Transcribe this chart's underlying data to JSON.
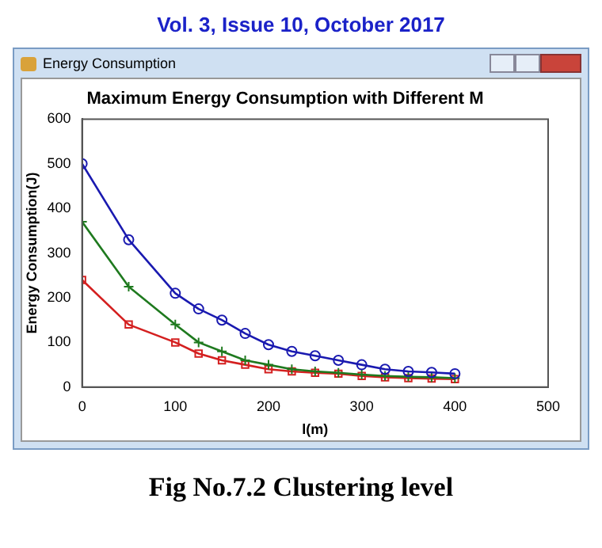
{
  "chart_data": {
    "type": "line",
    "title": "Maximum Energy Consumption with Different M",
    "xlabel": "l(m)",
    "ylabel": "Energy Consumption(J)",
    "annotations": [
      "Vol. 3, Issue 10, October 2017",
      "Energy Consumption",
      "Fig No.7.2 Clustering level"
    ],
    "x": [
      0,
      50,
      100,
      125,
      150,
      175,
      200,
      225,
      250,
      275,
      300,
      325,
      350,
      375,
      400
    ],
    "series": [
      {
        "color": "#1a1ab0",
        "marker": "circle",
        "values": [
          500,
          330,
          210,
          175,
          150,
          120,
          95,
          80,
          70,
          60,
          50,
          40,
          35,
          33,
          30
        ]
      },
      {
        "color": "#1f7a1f",
        "marker": "cross",
        "values": [
          370,
          225,
          140,
          100,
          80,
          60,
          50,
          40,
          35,
          32,
          28,
          25,
          23,
          22,
          20
        ]
      },
      {
        "color": "#d42020",
        "marker": "square",
        "values": [
          240,
          140,
          100,
          75,
          60,
          50,
          40,
          35,
          32,
          30,
          25,
          22,
          20,
          19,
          18
        ]
      }
    ],
    "xlim": [
      0,
      500
    ],
    "xticks": [
      0,
      100,
      200,
      300,
      400,
      500
    ],
    "ylim": [
      0,
      600
    ],
    "yticks": [
      0,
      100,
      200,
      300,
      400,
      500,
      600
    ],
    "grid": false,
    "legend": false
  }
}
